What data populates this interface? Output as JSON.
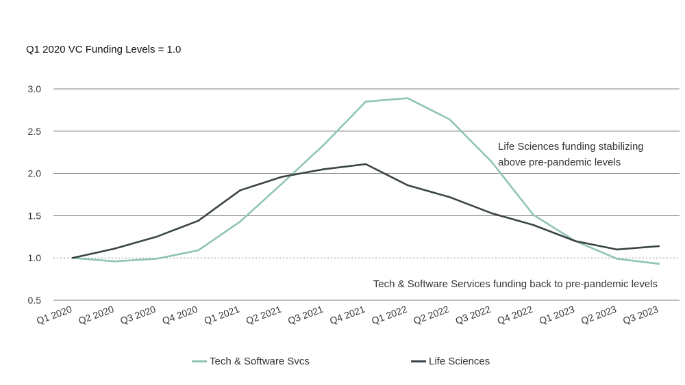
{
  "chart_data": {
    "type": "line",
    "subtitle": "Q1 2020 VC Funding Levels = 1.0",
    "categories": [
      "Q1 2020",
      "Q2 2020",
      "Q3 2020",
      "Q4 2020",
      "Q1 2021",
      "Q2 2021",
      "Q3 2021",
      "Q4 2021",
      "Q1 2022",
      "Q2 2022",
      "Q3 2022",
      "Q4 2022",
      "Q1 2023",
      "Q2 2023",
      "Q3 2023"
    ],
    "series": [
      {
        "name": "Tech & Software Svcs",
        "color": "#8fc4b3",
        "values": [
          1.0,
          0.96,
          0.99,
          1.09,
          1.43,
          1.88,
          2.34,
          2.85,
          2.89,
          2.64,
          2.14,
          1.51,
          1.2,
          0.99,
          0.93
        ]
      },
      {
        "name": "Life Sciences",
        "color": "#3a4347",
        "values": [
          1.0,
          1.11,
          1.25,
          1.44,
          1.8,
          1.96,
          2.05,
          2.11,
          1.86,
          1.72,
          1.53,
          1.39,
          1.2,
          1.1,
          1.14
        ]
      }
    ],
    "ylim": [
      0.5,
      3.0
    ],
    "yticks": [
      "3.0",
      "2.5",
      "2.0",
      "1.5",
      "1.0",
      "0.5"
    ],
    "ytick_values": [
      3.0,
      2.5,
      2.0,
      1.5,
      1.0,
      0.5
    ],
    "baseline": 1.0,
    "grid": true,
    "annotations": [
      {
        "lines": [
          "Life Sciences funding stabilizing",
          "above pre-pandemic levels"
        ]
      },
      {
        "lines": [
          "Tech & Software Services funding back to pre-pandemic levels"
        ]
      }
    ],
    "legend": [
      "Tech & Software Svcs",
      "Life Sciences"
    ],
    "grid_color": "#555555",
    "baseline_color": "#888888"
  }
}
